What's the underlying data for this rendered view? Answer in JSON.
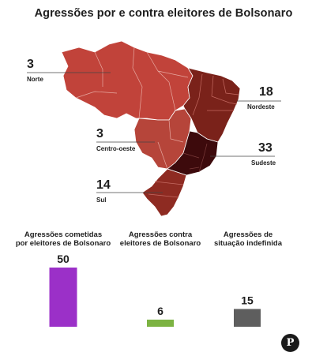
{
  "title": "Agressões por e contra eleitores de Bolsonaro",
  "regions": {
    "norte": {
      "value": "3",
      "name": "Norte",
      "color": "#c1433a"
    },
    "centro_oeste": {
      "value": "3",
      "name": "Centro-oeste",
      "color": "#b6453a"
    },
    "nordeste": {
      "value": "18",
      "name": "Nordeste",
      "color": "#7a221a"
    },
    "sudeste": {
      "value": "33",
      "name": "Sudeste",
      "color": "#3d0a0c"
    },
    "sul": {
      "value": "14",
      "name": "Sul",
      "color": "#8e2b22"
    }
  },
  "bar_labels": {
    "by": "Agressões cometidas\npor eleitores de Bolsonaro",
    "against": "Agressões contra\neleitores de Bolsonaro",
    "undefined": "Agressões de\nsituação indefinida"
  },
  "chart_data": {
    "type": "bar",
    "categories": [
      "Agressões cometidas por eleitores de Bolsonaro",
      "Agressões contra eleitores de Bolsonaro",
      "Agressões de situação indefinida"
    ],
    "values": [
      50,
      6,
      15
    ],
    "colors": [
      "#9b30c8",
      "#7cb342",
      "#5e5e5e"
    ]
  },
  "logo_text": "P"
}
